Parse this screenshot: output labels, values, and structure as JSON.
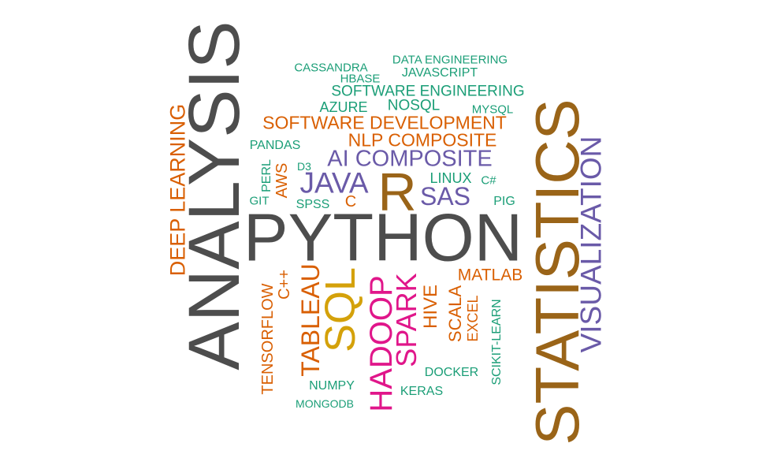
{
  "colors": {
    "gray": "#4d4d4d",
    "green": "#1b9e77",
    "orange": "#d95f02",
    "purple": "#6a5aa8",
    "brown": "#9a6418",
    "mustard": "#d4a10a",
    "magenta": "#e0168a"
  },
  "words": {
    "python": "PYTHON",
    "analysis": "ANALYSIS",
    "statistics": "STATISTICS",
    "r": "R",
    "sql": "SQL",
    "visualization": "VISUALIZATION",
    "java": "JAVA",
    "ai_composite": "AI COMPOSITE",
    "sas": "SAS",
    "hadoop": "HADOOP",
    "spark": "SPARK",
    "tableau": "TABLEAU",
    "deep_learning": "DEEP LEARNING",
    "software_development": "SOFTWARE DEVELOPMENT",
    "nlp_composite": "NLP COMPOSITE",
    "software_engineering": "SOFTWARE ENGINEERING",
    "data_engineering": "DATA ENGINEERING",
    "cassandra": "CASSANDRA",
    "javascript": "JAVASCRIPT",
    "hbase": "HBASE",
    "azure": "AZURE",
    "nosql": "NOSQL",
    "mysql": "MYSQL",
    "pandas": "PANDAS",
    "aws": "AWS",
    "perl": "PERL",
    "d3": "D3",
    "linux": "LINUX",
    "c_sharp": "C#",
    "git": "GIT",
    "spss": "SPSS",
    "c": "C",
    "pig": "PIG",
    "matlab": "MATLAB",
    "c_plus_plus": "C++",
    "tensorflow": "TENSORFLOW",
    "hive": "HIVE",
    "scala": "SCALA",
    "excel": "EXCEL",
    "scikit_learn": "SCIKIT-LEARN",
    "docker": "DOCKER",
    "numpy": "NUMPY",
    "keras": "KERAS",
    "mongodb": "MONGODB"
  }
}
